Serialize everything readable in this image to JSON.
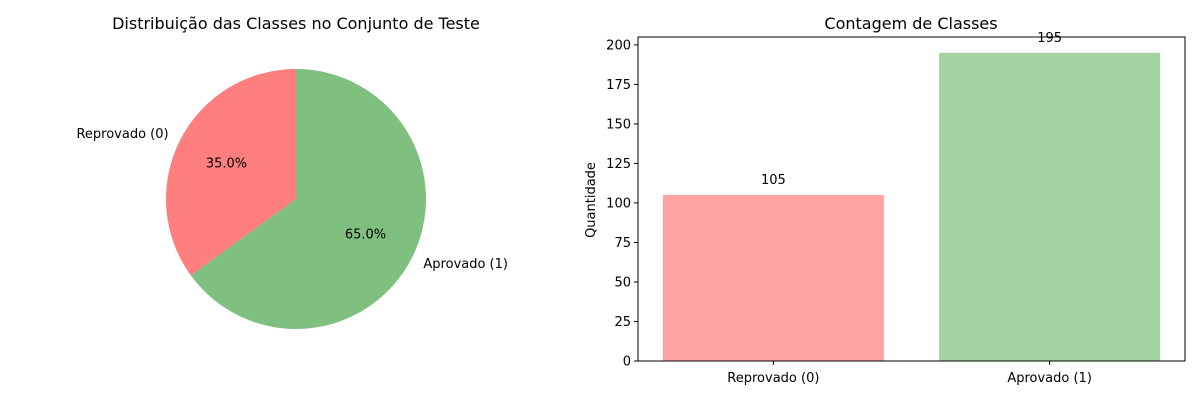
{
  "chart_data": [
    {
      "type": "pie",
      "title": "Distribuição das Classes no Conjunto de Teste",
      "categories": [
        "Reprovado (0)",
        "Aprovado (1)"
      ],
      "values": [
        35.0,
        65.0
      ],
      "percent_labels": [
        "35.0%",
        "65.0%"
      ],
      "colors": [
        "#ff7f7f",
        "#7fbf7f"
      ],
      "start_angle_deg": 90,
      "direction": "counterclockwise"
    },
    {
      "type": "bar",
      "title": "Contagem de Classes",
      "categories": [
        "Reprovado (0)",
        "Aprovado (1)"
      ],
      "values": [
        105,
        195
      ],
      "value_labels": [
        "105",
        "195"
      ],
      "colors": [
        "#ffa3a3",
        "#a3d3a3"
      ],
      "xlabel": "",
      "ylabel": "Quantidade",
      "ylim": [
        0,
        205
      ],
      "yticks": [
        0,
        25,
        50,
        75,
        100,
        125,
        150,
        175,
        200
      ],
      "grid": false
    }
  ]
}
